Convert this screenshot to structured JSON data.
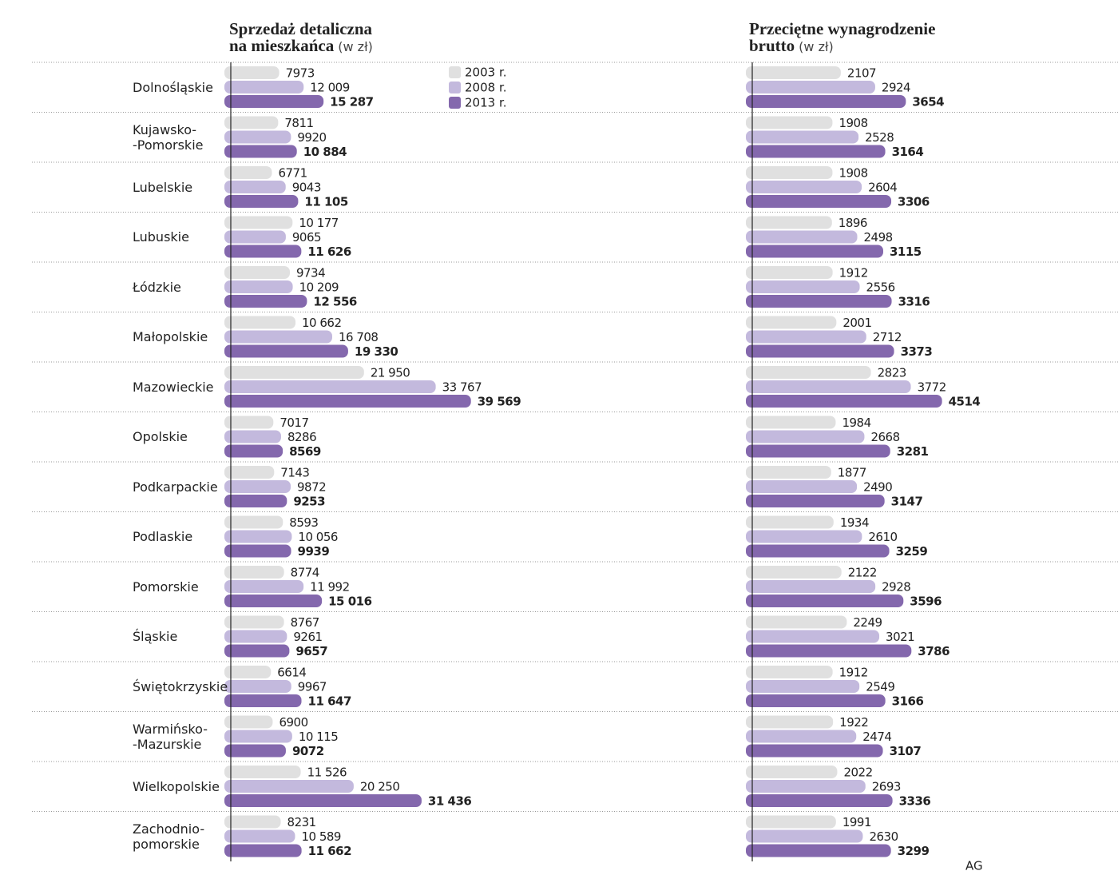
{
  "chart_data": [
    {
      "type": "bar",
      "orientation": "horizontal",
      "title": "Sprzedaż detaliczna\nna mieszkańca",
      "subtitle": "(w zł)",
      "legend": true,
      "categories": [
        "Dolnośląskie",
        "Kujawsko-\n-Pomorskie",
        "Lubelskie",
        "Lubuskie",
        "Łódzkie",
        "Małopolskie",
        "Mazowieckie",
        "Opolskie",
        "Podkarpackie",
        "Podlaskie",
        "Pomorskie",
        "Śląskie",
        "Świętokrzyskie",
        "Warmińsko-\n-Mazurskie",
        "Wielkopolskie",
        "Zachodnio-\npomorskie"
      ],
      "xlim": [
        0,
        80000
      ],
      "series": [
        {
          "name": "2003 r.",
          "color": "#e0e0e0",
          "values": [
            7973,
            7811,
            6771,
            10177,
            9734,
            10662,
            21950,
            7017,
            7143,
            8593,
            8774,
            8767,
            6614,
            6900,
            11526,
            8231
          ],
          "value_labels": [
            "7973",
            "7811",
            "6771",
            "10 177",
            "9734",
            "10 662",
            "21 950",
            "7017",
            "7143",
            "8593",
            "8774",
            "8767",
            "6614",
            "6900",
            "11 526",
            "8231"
          ]
        },
        {
          "name": "2008 r.",
          "color": "#c3b9dd",
          "values": [
            12009,
            9920,
            9043,
            9065,
            10209,
            16708,
            33767,
            8286,
            9872,
            10056,
            11992,
            9261,
            9967,
            10115,
            20250,
            10589
          ],
          "value_labels": [
            "12 009",
            "9920",
            "9043",
            "9065",
            "10 209",
            "16 708",
            "33 767",
            "8286",
            "9872",
            "10 056",
            "11 992",
            "9261",
            "9967",
            "10 115",
            "20 250",
            "10 589"
          ]
        },
        {
          "name": "2013 r.",
          "color": "#8468ad",
          "values": [
            15287,
            10884,
            11105,
            11626,
            12556,
            19330,
            39569,
            8569,
            9253,
            9939,
            15016,
            9657,
            11647,
            9072,
            31436,
            11662
          ],
          "value_labels": [
            "15 287",
            "10 884",
            "11 105",
            "11 626",
            "12 556",
            "19 330",
            "39 569",
            "8569",
            "9253",
            "9939",
            "15 016",
            "9657",
            "11 647",
            "9072",
            "31 436",
            "11 662"
          ]
        }
      ]
    },
    {
      "type": "bar",
      "orientation": "horizontal",
      "title": "Przeciętne wynagrodzenie\nbrutto",
      "subtitle": "(w zł)",
      "xlim": [
        0,
        8700
      ],
      "series": [
        {
          "color": "#e0e0e0",
          "values": [
            2107,
            1908,
            1908,
            1896,
            1912,
            2001,
            2823,
            1984,
            1877,
            1934,
            2122,
            2249,
            1912,
            1922,
            2022,
            1991
          ]
        },
        {
          "color": "#c3b9dd",
          "values": [
            2924,
            2528,
            2604,
            2498,
            2556,
            2712,
            3772,
            2668,
            2490,
            2610,
            2928,
            3021,
            2549,
            2474,
            2693,
            2630
          ]
        },
        {
          "color": "#8468ad",
          "values": [
            3654,
            3164,
            3306,
            3115,
            3316,
            3373,
            4514,
            3281,
            3147,
            3259,
            3596,
            3786,
            3166,
            3107,
            3336,
            3299
          ]
        }
      ]
    }
  ],
  "credit": "AG"
}
